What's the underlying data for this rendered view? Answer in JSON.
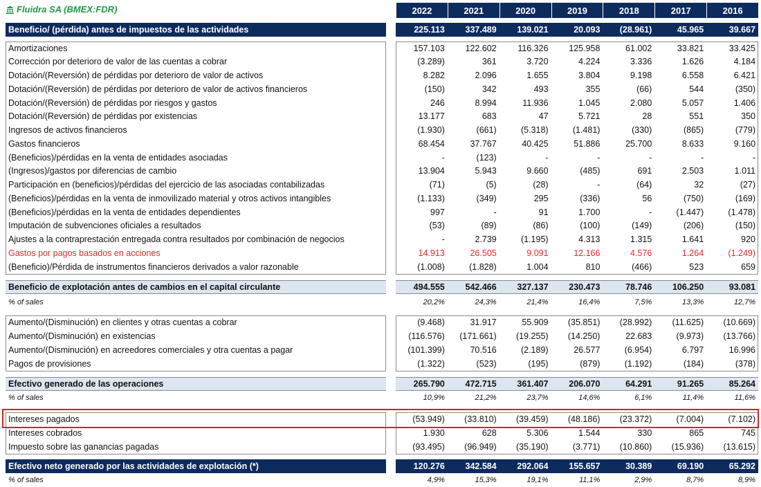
{
  "title": "Fluidra SA (BMEX:FDR)",
  "years": [
    "2022",
    "2021",
    "2020",
    "2019",
    "2018",
    "2017",
    "2016"
  ],
  "pretax_profit": {
    "label": "Beneficio/ (pérdida) antes de impuestos de las actividades",
    "values": [
      "225.113",
      "337.489",
      "139.021",
      "20.093",
      "(28.961)",
      "45.965",
      "39.667"
    ]
  },
  "adjustments": [
    {
      "label": "Amortizaciones",
      "values": [
        "157.103",
        "122.602",
        "116.326",
        "125.958",
        "61.002",
        "33.821",
        "33.425"
      ]
    },
    {
      "label": "Corrección por deterioro de valor de las cuentas a cobrar",
      "values": [
        "(3.289)",
        "361",
        "3.720",
        "4.224",
        "3.336",
        "1.626",
        "4.184"
      ]
    },
    {
      "label": "Dotación/(Reversión) de pérdidas por deterioro de valor de activos",
      "values": [
        "8.282",
        "2.096",
        "1.655",
        "3.804",
        "9.198",
        "6.558",
        "6.421"
      ]
    },
    {
      "label": "Dotación/(Reversión) de pérdidas por deterioro de valor de activos financieros",
      "values": [
        "(150)",
        "342",
        "493",
        "355",
        "(66)",
        "544",
        "(350)"
      ]
    },
    {
      "label": "Dotación/(Reversión) de pérdidas por riesgos y gastos",
      "values": [
        "246",
        "8.994",
        "11.936",
        "1.045",
        "2.080",
        "5.057",
        "1.406"
      ]
    },
    {
      "label": "Dotación/(Reversión) de pérdidas por existencias",
      "values": [
        "13.177",
        "683",
        "47",
        "5.721",
        "28",
        "551",
        "350"
      ]
    },
    {
      "label": "Ingresos de activos financieros",
      "values": [
        "(1.930)",
        "(661)",
        "(5.318)",
        "(1.481)",
        "(330)",
        "(865)",
        "(779)"
      ]
    },
    {
      "label": "Gastos financieros",
      "values": [
        "68.454",
        "37.767",
        "40.425",
        "51.886",
        "25.700",
        "8.633",
        "9.160"
      ]
    },
    {
      "label": "(Beneficios)/pérdidas en la venta de entidades asociadas",
      "values": [
        "-",
        "(123)",
        "-",
        "-",
        "-",
        "-",
        "-"
      ]
    },
    {
      "label": "(Ingresos)/gastos por diferencias de cambio",
      "values": [
        "13.904",
        "5.943",
        "9.660",
        "(485)",
        "691",
        "2.503",
        "1.011"
      ]
    },
    {
      "label": "Participación en (beneficios)/pérdidas del ejercicio de las asociadas contabilizadas",
      "values": [
        "(71)",
        "(5)",
        "(28)",
        "-",
        "(64)",
        "32",
        "(27)"
      ]
    },
    {
      "label": "(Beneficios)/pérdidas en la venta de inmovilizado material y otros activos intangibles",
      "values": [
        "(1.133)",
        "(349)",
        "295",
        "(336)",
        "56",
        "(750)",
        "(169)"
      ]
    },
    {
      "label": "(Beneficios)/pérdidas en la venta de entidades dependientes",
      "values": [
        "997",
        "-",
        "91",
        "1.700",
        "-",
        "(1.447)",
        "(1.478)"
      ]
    },
    {
      "label": "Imputación de subvenciones oficiales a resultados",
      "values": [
        "(53)",
        "(89)",
        "(86)",
        "(100)",
        "(149)",
        "(206)",
        "(150)"
      ]
    },
    {
      "label": "Ajustes a la contraprestación entregada contra resultados por combinación de negocios",
      "values": [
        "-",
        "2.739",
        "(1.195)",
        "4.313",
        "1.315",
        "1.641",
        "920"
      ]
    },
    {
      "label": "Gastos por pagos basados en acciones",
      "values": [
        "14.913",
        "26.505",
        "9.091",
        "12.166",
        "4.576",
        "1.264",
        "(1.249)"
      ],
      "color": "#e8262a"
    },
    {
      "label": "(Beneficio)/Pérdida de instrumentos financieros derivados a valor razonable",
      "values": [
        "(1.008)",
        "(1.828)",
        "1.004",
        "810",
        "(466)",
        "523",
        "659"
      ]
    }
  ],
  "operating_profit": {
    "label": "Beneficio de explotación antes de cambios en el capital circulante",
    "values": [
      "494.555",
      "542.466",
      "327.137",
      "230.473",
      "78.746",
      "106.250",
      "93.081"
    ],
    "sales_pct": {
      "label": "% of sales",
      "values": [
        "20,2%",
        "24,3%",
        "21,4%",
        "16,4%",
        "7,5%",
        "13,3%",
        "12,7%"
      ]
    }
  },
  "working_capital": [
    {
      "label": "Aumento/(Disminución) en clientes y otras cuentas a cobrar",
      "values": [
        "(9.468)",
        "31.917",
        "55.909",
        "(35.851)",
        "(28.992)",
        "(11.625)",
        "(10.669)"
      ]
    },
    {
      "label": "Aumento/(Disminución) en existencias",
      "values": [
        "(116.576)",
        "(171.661)",
        "(19.255)",
        "(14.250)",
        "22.683",
        "(9.973)",
        "(13.766)"
      ]
    },
    {
      "label": "Aumento/(Disminución) en acreedores comerciales y otra cuentas a pagar",
      "values": [
        "(101.399)",
        "70.516",
        "(2.189)",
        "26.577",
        "(6.954)",
        "6.797",
        "16.996"
      ]
    },
    {
      "label": "Pagos de provisiones",
      "values": [
        "(1.322)",
        "(523)",
        "(195)",
        "(879)",
        "(1.192)",
        "(184)",
        "(378)"
      ]
    }
  ],
  "operations_cash": {
    "label": "Efectivo generado de las operaciones",
    "values": [
      "265.790",
      "472.715",
      "361.407",
      "206.070",
      "64.291",
      "91.265",
      "85.264"
    ],
    "sales_pct": {
      "label": "% of sales",
      "values": [
        "10,9%",
        "21,2%",
        "23,7%",
        "14,6%",
        "6,1%",
        "11,4%",
        "11,6%"
      ]
    }
  },
  "interest_tax": [
    {
      "label": "Intereses pagados",
      "values": [
        "(53.949)",
        "(33.810)",
        "(39.459)",
        "(48.186)",
        "(23.372)",
        "(7.004)",
        "(7.102)"
      ]
    },
    {
      "label": "Intereses cobrados",
      "values": [
        "1.930",
        "628",
        "5.306",
        "1.544",
        "330",
        "865",
        "745"
      ]
    },
    {
      "label": "Impuesto sobre las ganancias pagadas",
      "values": [
        "(93.495)",
        "(96.949)",
        "(35.190)",
        "(3.771)",
        "(10.860)",
        "(15.936)",
        "(13.615)"
      ]
    }
  ],
  "net_operating_cash": {
    "label": "Efectivo neto generado por las actividades de explotación (*)",
    "values": [
      "120.276",
      "342.584",
      "292.064",
      "155.657",
      "30.389",
      "69.190",
      "65.292"
    ],
    "sales_pct": {
      "label": "% of sales",
      "values": [
        "4,9%",
        "15,3%",
        "19,1%",
        "11,1%",
        "2,9%",
        "8,7%",
        "8,9%"
      ]
    }
  }
}
